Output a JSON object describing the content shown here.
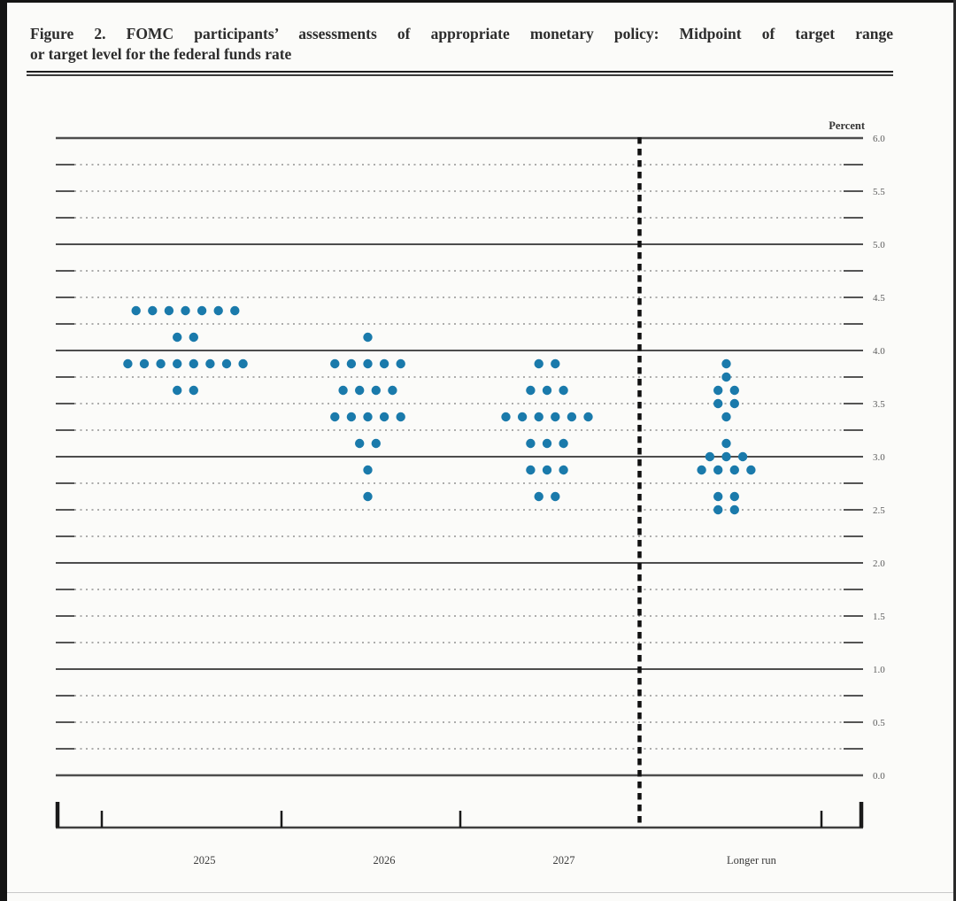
{
  "header": {
    "title_line1": "Figure 2.  FOMC participants’ assessments of appropriate monetary policy:  Midpoint of target range",
    "title_line2": "or target level for the federal funds rate"
  },
  "chart_data": {
    "type": "scatter",
    "subtype": "fomc-dot-plot",
    "title": "Figure 2. FOMC participants’ assessments of appropriate monetary policy: Midpoint of target range or target level for the federal funds rate",
    "ylabel": "Percent",
    "ylim": [
      0.0,
      6.0
    ],
    "grid": "solid lines at each 1.0, dotted lines at each 0.25",
    "y_solid_gridline_step": 1.0,
    "y_dotted_gridline_step": 0.25,
    "y_tick_label_step": 0.5,
    "y_tick_labels": [
      "6.0",
      "5.5",
      "5.0",
      "4.5",
      "4.0",
      "3.5",
      "3.0",
      "2.5",
      "2.0",
      "1.5",
      "1.0",
      "0.5",
      "0.0"
    ],
    "categories": [
      "2025",
      "2026",
      "2027",
      "Longer run"
    ],
    "separator": "thick dashed vertical line between 2027 and Longer run",
    "dot_color": "#1a7aab",
    "dots_unit": "number of participants at each rate midpoint (percent)",
    "columns": [
      {
        "label": "2025",
        "dots": [
          [
            4.375,
            7
          ],
          [
            4.125,
            2
          ],
          [
            3.875,
            8
          ],
          [
            3.625,
            2
          ]
        ]
      },
      {
        "label": "2026",
        "dots": [
          [
            4.125,
            1
          ],
          [
            3.875,
            5
          ],
          [
            3.625,
            4
          ],
          [
            3.375,
            5
          ],
          [
            3.125,
            2
          ],
          [
            2.875,
            1
          ],
          [
            2.625,
            1
          ]
        ]
      },
      {
        "label": "2027",
        "dots": [
          [
            3.875,
            2
          ],
          [
            3.625,
            3
          ],
          [
            3.375,
            6
          ],
          [
            3.125,
            3
          ],
          [
            2.875,
            3
          ],
          [
            2.625,
            2
          ]
        ]
      },
      {
        "label": "Longer run",
        "dots": [
          [
            3.875,
            1
          ],
          [
            3.75,
            1
          ],
          [
            3.625,
            2
          ],
          [
            3.5,
            2
          ],
          [
            3.375,
            1
          ],
          [
            3.125,
            1
          ],
          [
            3.0,
            3
          ],
          [
            2.875,
            4
          ],
          [
            2.625,
            2
          ],
          [
            2.5,
            2
          ]
        ]
      }
    ]
  }
}
